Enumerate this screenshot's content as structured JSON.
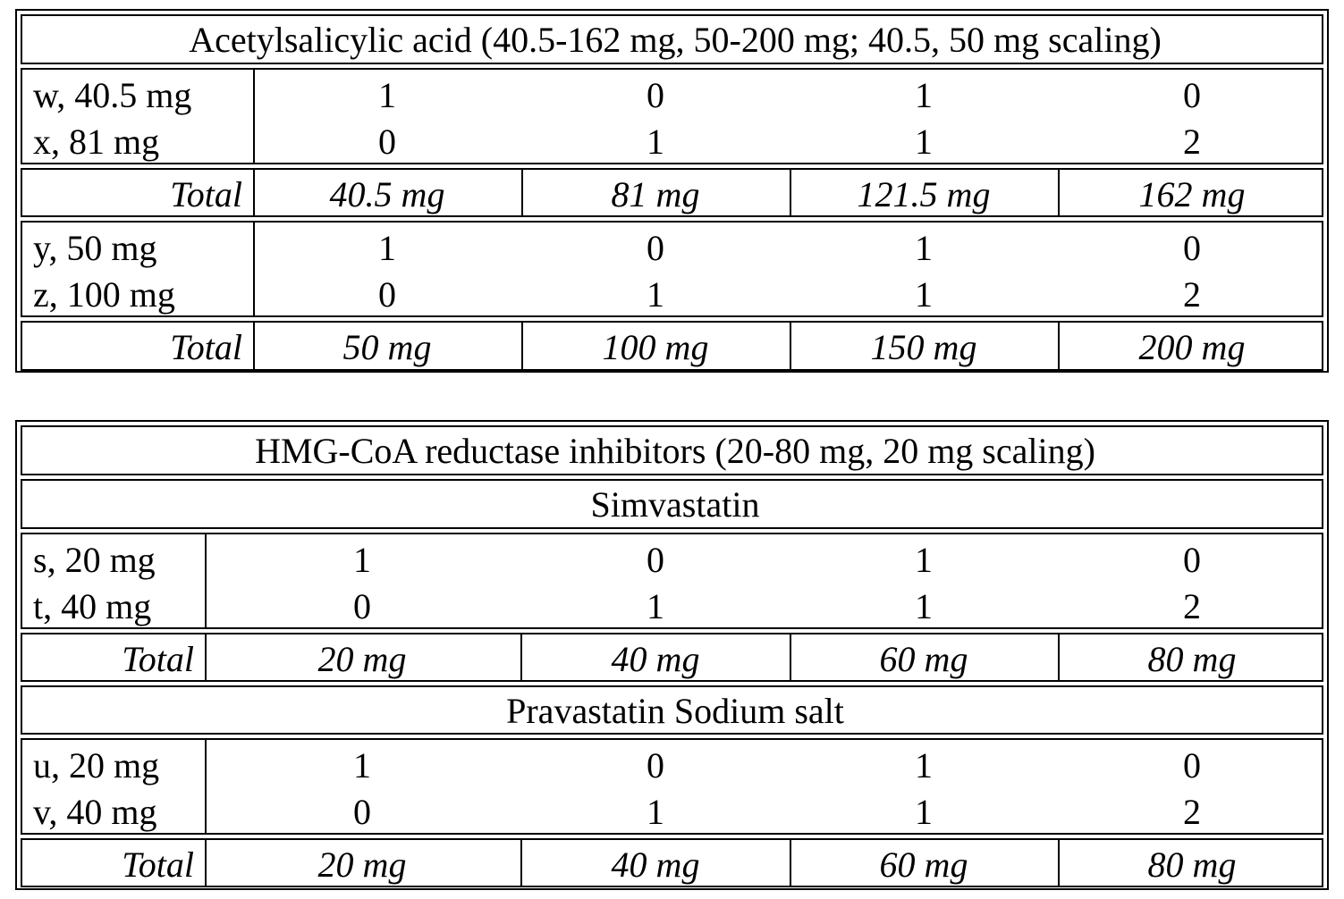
{
  "table1": {
    "title": "Acetylsalicylic acid (40.5-162 mg, 50-200 mg; 40.5, 50 mg scaling)",
    "groups": [
      {
        "rows": [
          {
            "label": "w, 40.5 mg",
            "values": [
              "1",
              "0",
              "1",
              "0"
            ]
          },
          {
            "label": "x, 81 mg",
            "values": [
              "0",
              "1",
              "1",
              "2"
            ]
          }
        ],
        "total_label": "Total",
        "totals": [
          "40.5 mg",
          "81 mg",
          "121.5 mg",
          "162 mg"
        ]
      },
      {
        "rows": [
          {
            "label": "y, 50 mg",
            "values": [
              "1",
              "0",
              "1",
              "0"
            ]
          },
          {
            "label": "z, 100 mg",
            "values": [
              "0",
              "1",
              "1",
              "2"
            ]
          }
        ],
        "total_label": "Total",
        "totals": [
          "50 mg",
          "100 mg",
          "150 mg",
          "200 mg"
        ]
      }
    ]
  },
  "table2": {
    "title": "HMG-CoA reductase inhibitors (20-80 mg, 20 mg scaling)",
    "sections": [
      {
        "name": "Simvastatin",
        "rows": [
          {
            "label": "s, 20 mg",
            "values": [
              "1",
              "0",
              "1",
              "0"
            ]
          },
          {
            "label": "t, 40 mg",
            "values": [
              "0",
              "1",
              "1",
              "2"
            ]
          }
        ],
        "total_label": "Total",
        "totals": [
          "20 mg",
          "40 mg",
          "60 mg",
          "80 mg"
        ]
      },
      {
        "name": "Pravastatin Sodium salt",
        "rows": [
          {
            "label": "u, 20 mg",
            "values": [
              "1",
              "0",
              "1",
              "0"
            ]
          },
          {
            "label": "v, 40 mg",
            "values": [
              "0",
              "1",
              "1",
              "2"
            ]
          }
        ],
        "total_label": "Total",
        "totals": [
          "20 mg",
          "40 mg",
          "60 mg",
          "80 mg"
        ]
      }
    ]
  }
}
